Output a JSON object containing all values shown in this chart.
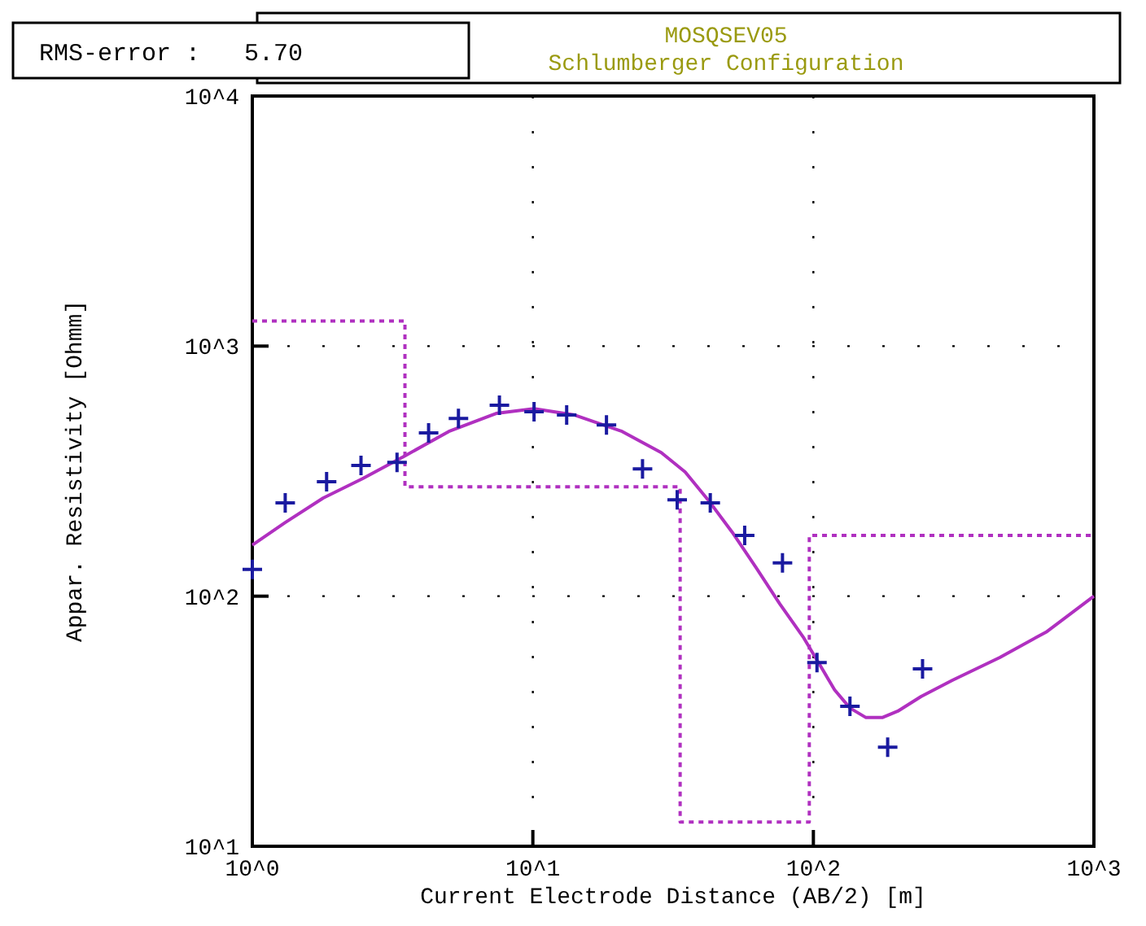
{
  "chart_data": {
    "type": "line",
    "title": "MOSQSEV05",
    "subtitle": "Schlumberger Configuration",
    "annotations": [
      "RMS-error :   5.70"
    ],
    "xlabel": "Current Electrode Distance (AB/2) [m]",
    "ylabel": "Appar. Resistivity [Ohmm]",
    "log": "xy",
    "grid": true,
    "xlim": [
      1,
      1000
    ],
    "xticks": [
      {
        "value": 1,
        "label": "10^0"
      },
      {
        "value": 10,
        "label": "10^1"
      },
      {
        "value": 100,
        "label": "10^2"
      },
      {
        "value": 1000,
        "label": "10^3"
      }
    ],
    "ylim": [
      10,
      10000
    ],
    "yticks": [
      {
        "value": 10,
        "label": "10^1"
      },
      {
        "value": 100,
        "label": "10^2"
      },
      {
        "value": 1000,
        "label": "10^3"
      },
      {
        "value": 10000,
        "label": "10^4"
      }
    ],
    "series": [
      {
        "type": "step",
        "color": "#b030c0",
        "line_style": "dotted",
        "x": [
          1,
          3.5,
          33.5,
          96.7,
          1000
        ],
        "values": [
          1260,
          274,
          12.5,
          175,
          175
        ]
      },
      {
        "color": "#b030c0",
        "x": [
          1,
          1.31,
          1.79,
          2.47,
          3.5,
          5.02,
          7.4,
          10.1,
          14.1,
          20.8,
          28.7,
          34.9,
          42.1,
          51.4,
          62.5,
          75.9,
          92.4,
          105,
          119,
          135,
          154,
          176,
          200,
          242,
          313,
          462,
          680,
          1000
        ],
        "values": [
          160,
          197,
          247,
          295,
          364,
          456,
          538,
          562,
          530,
          456,
          375,
          314,
          243,
          180,
          130,
          93.2,
          68.1,
          53.6,
          42.2,
          35.7,
          32.7,
          32.7,
          34.7,
          39.7,
          46.1,
          56.9,
          72.2,
          100
        ]
      },
      {
        "type": "scatter",
        "color": "#1a1aa0",
        "marker": "cross",
        "x": [
          1,
          1.31,
          1.84,
          2.44,
          3.28,
          4.25,
          5.43,
          7.6,
          10.1,
          13.2,
          18.3,
          24.6,
          32.7,
          42.9,
          56.9,
          77.6,
          103,
          135,
          184,
          245
        ],
        "values": [
          128,
          236,
          287,
          333,
          343,
          450,
          514,
          580,
          546,
          530,
          484,
          323,
          243,
          236,
          175,
          136,
          54.3,
          36.3,
          24.9,
          51.2
        ]
      }
    ]
  }
}
